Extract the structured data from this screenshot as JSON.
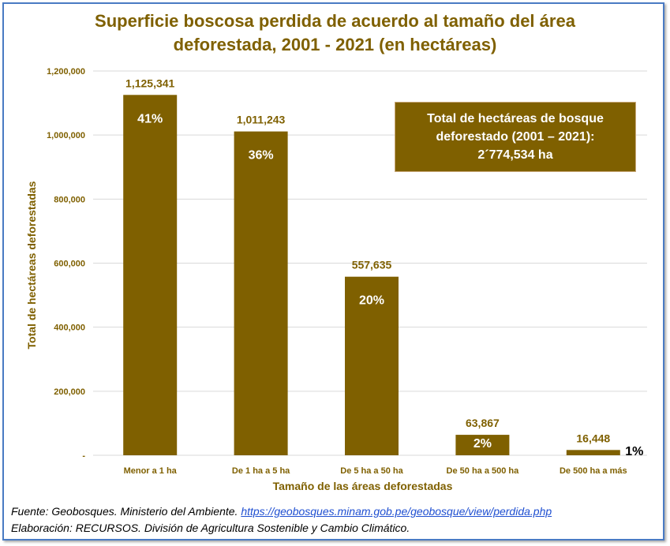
{
  "title_line1": "Superficie boscosa perdida de acuerdo al tamaño del área",
  "title_line2": "deforestada, 2001 - 2021 (en hectáreas)",
  "total_box": {
    "line1": "Total de hectáreas de bosque",
    "line2": "deforestado (2001 – 2021):",
    "line3": "2´774,534 ha"
  },
  "source": {
    "prefix": "Fuente: Geobosques. Ministerio del Ambiente. ",
    "link": "https://geobosques.minam.gob.pe/geobosque/view/perdida.php",
    "line2": "Elaboración: RECURSOS. División de Agricultura Sostenible y Cambio Climático."
  },
  "colors": {
    "bar": "#7f6000",
    "title": "#7f6000",
    "border": "#4a7bc4"
  },
  "chart_data": {
    "type": "bar",
    "title": "Superficie boscosa perdida de acuerdo al tamaño del área deforestada, 2001 - 2021 (en hectáreas)",
    "xlabel": "Tamaño de las áreas deforestadas",
    "ylabel": "Total de hectáreas deforestadas",
    "ylim": [
      0,
      1200000
    ],
    "yticks": [
      0,
      200000,
      400000,
      600000,
      800000,
      1000000,
      1200000
    ],
    "ytick_labels": [
      "-",
      "200,000",
      "400,000",
      "600,000",
      "800,000",
      "1,000,000",
      "1,200,000"
    ],
    "grid": true,
    "categories": [
      "Menor a 1 ha",
      "De 1 ha a 5 ha",
      "De 5 ha a 50 ha",
      "De 50 ha a 500 ha",
      "De 500 ha a más"
    ],
    "values": [
      1125341,
      1011243,
      557635,
      63867,
      16448
    ],
    "value_labels": [
      "1,125,341",
      "1,011,243",
      "557,635",
      "63,867",
      "16,448"
    ],
    "percent_labels": [
      "41%",
      "36%",
      "20%",
      "2%",
      "1%"
    ]
  }
}
